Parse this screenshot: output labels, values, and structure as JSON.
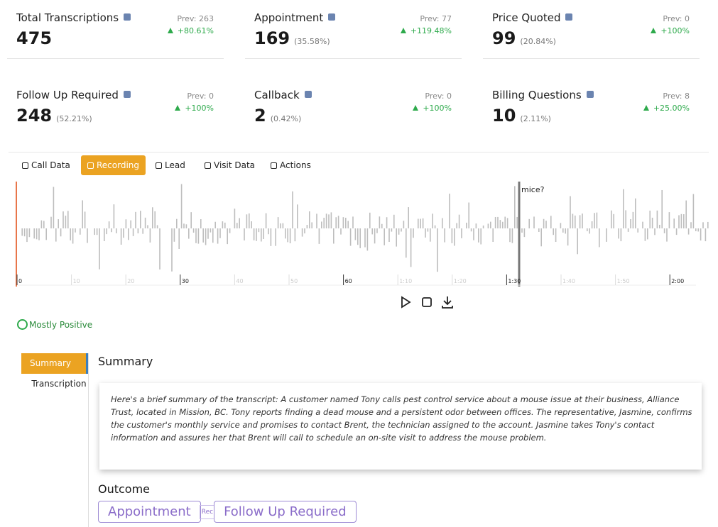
{
  "stats": [
    {
      "title": "Total Transcriptions",
      "value": "475",
      "prev": "Prev: 263",
      "change": "+80.61%"
    },
    {
      "title": "Appointment",
      "value": "169",
      "percent": "(35.58%)",
      "prev": "Prev: 77",
      "change": "+119.48%"
    },
    {
      "title": "Price Quoted",
      "value": "99",
      "percent": "(20.84%)",
      "prev": "Prev: 0",
      "change": "+100%"
    },
    {
      "title": "Follow Up Required",
      "value": "248",
      "percent": "(52.21%)",
      "prev": "Prev: 0",
      "change": "+100%"
    },
    {
      "title": "Callback",
      "value": "2",
      "percent": "(0.42%)",
      "prev": "Prev: 0",
      "change": "+100%"
    },
    {
      "title": "Billing Questions",
      "value": "10",
      "percent": "(2.11%)",
      "prev": "Prev: 8",
      "change": "+25.00%"
    }
  ],
  "tabs": [
    "Call Data",
    "Recording",
    "Lead",
    "Visit Data",
    "Actions"
  ],
  "waveform": {
    "ticks": [
      "0",
      "10",
      "20",
      "30",
      "40",
      "50",
      "60",
      "1:10",
      "1:20",
      "1:30",
      "1:40",
      "1:50",
      "2:00"
    ],
    "marker_label": "mice?"
  },
  "sentiment": "Mostly Positive",
  "side_tabs": [
    "Summary",
    "Transcription"
  ],
  "summary": {
    "heading": "Summary",
    "text": "Here's a brief summary of the transcript: A customer named Tony calls pest control service about a mouse issue at their business, Alliance Trust, located in Mission, BC. Tony reports finding a dead mouse and a persistent odor between offices. The representative, Jasmine, confirms the customer's monthly service and promises to contact Brent, the technician assigned to the account. Jasmine takes Tony's contact information and assures her that Brent will call to schedule an on-site visit to address the mouse problem."
  },
  "outcome": {
    "heading": "Outcome",
    "tags": [
      "Appointment",
      "Follow Up Required"
    ],
    "partial_tag": "Rec"
  }
}
